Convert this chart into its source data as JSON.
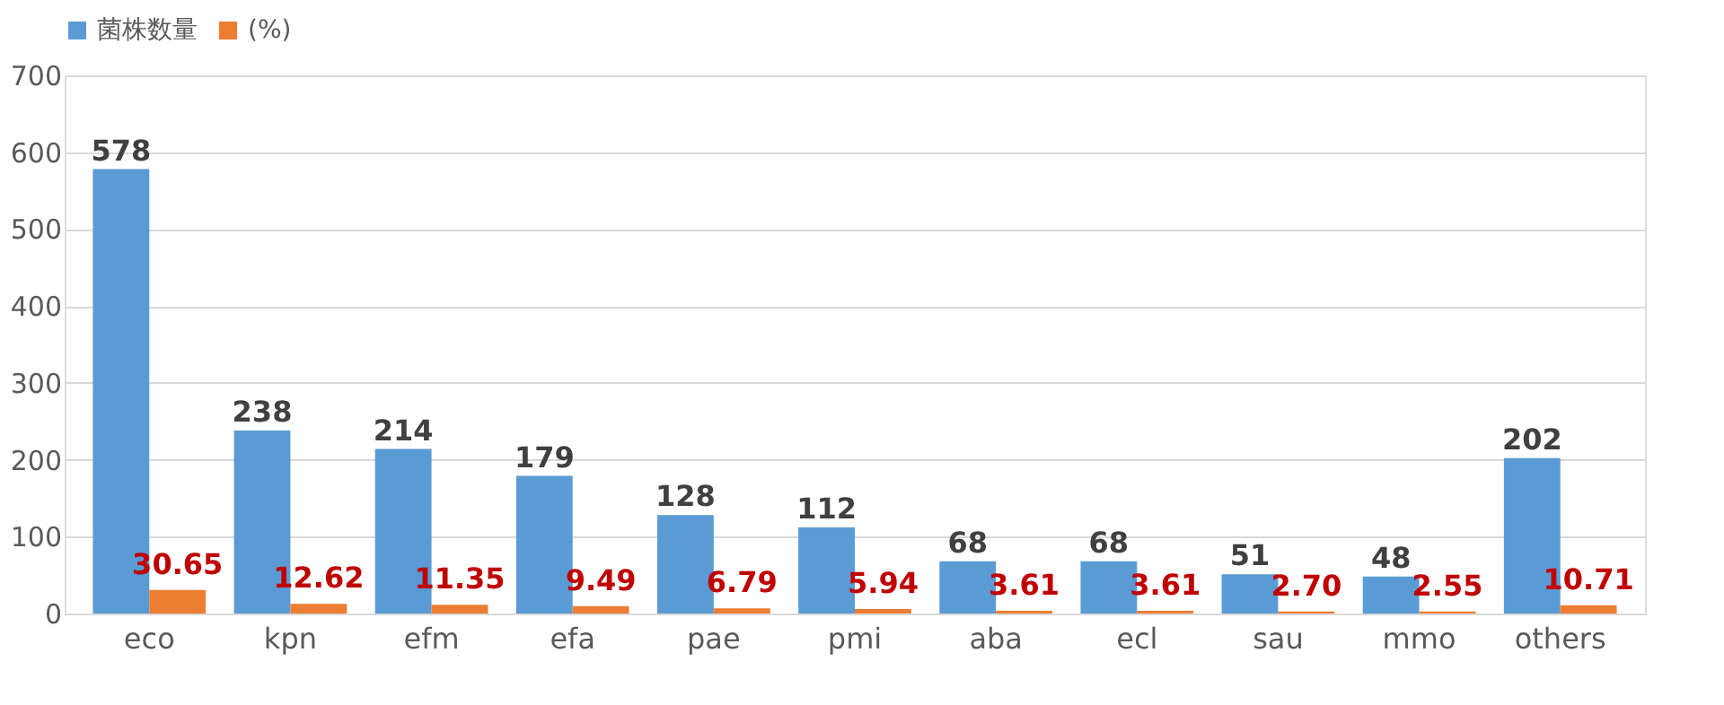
{
  "chart_data": {
    "type": "bar",
    "categories": [
      "eco",
      "kpn",
      "efm",
      "efa",
      "pae",
      "pmi",
      "aba",
      "ecl",
      "sau",
      "mmo",
      "others"
    ],
    "series": [
      {
        "name": "菌株数量",
        "color": "#5b9bd5",
        "values": [
          578,
          238,
          214,
          179,
          128,
          112,
          68,
          68,
          51,
          48,
          202
        ],
        "value_labels": [
          "578",
          "238",
          "214",
          "179",
          "128",
          "112",
          "68",
          "68",
          "51",
          "48",
          "202"
        ]
      },
      {
        "name": "(%)",
        "color": "#ed7d31",
        "values": [
          30.65,
          12.62,
          11.35,
          9.49,
          6.79,
          5.94,
          3.61,
          3.61,
          2.7,
          2.55,
          10.71
        ],
        "value_labels": [
          "30.65",
          "12.62",
          "11.35",
          "9.49",
          "6.79",
          "5.94",
          "3.61",
          "3.61",
          "2.70",
          "2.55",
          "10.71"
        ]
      }
    ],
    "ylim": [
      0,
      700
    ],
    "yticks": [
      0,
      100,
      200,
      300,
      400,
      500,
      600,
      700
    ],
    "grid": "y",
    "legend": "top"
  }
}
